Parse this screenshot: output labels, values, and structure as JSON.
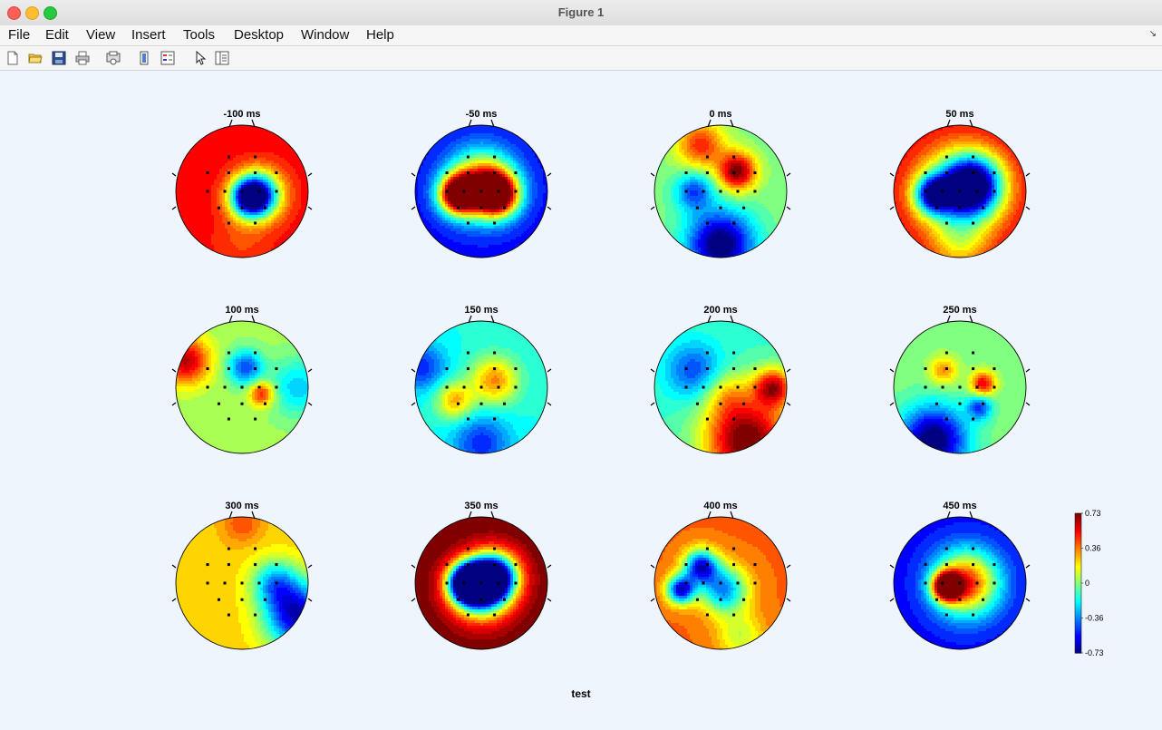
{
  "window": {
    "title": "Figure 1"
  },
  "menu": [
    "File",
    "Edit",
    "View",
    "Insert",
    "Tools",
    "Desktop",
    "Window",
    "Help"
  ],
  "toolbar": [
    {
      "name": "new-figure-icon"
    },
    {
      "name": "open-file-icon"
    },
    {
      "name": "save-icon"
    },
    {
      "name": "print-icon"
    },
    {
      "name": "print-preview-icon"
    },
    {
      "name": "colorbar-toggle-icon"
    },
    {
      "name": "legend-toggle-icon"
    },
    {
      "name": "pointer-icon"
    },
    {
      "name": "property-inspector-icon"
    }
  ],
  "figure": {
    "title": "test",
    "colorbar": {
      "ticks": [
        "0.73",
        "0.36",
        "0",
        "-0.36",
        "-0.73"
      ],
      "min": -0.73,
      "max": 0.73
    }
  },
  "chart_data": {
    "type": "heatmap",
    "title": "test",
    "panels": [
      {
        "label": "-100 ms",
        "base": 0.55,
        "blobs": [
          [
            0.25,
            0.05,
            -0.45,
            0.25
          ],
          [
            0.1,
            0.1,
            -0.3,
            0.2
          ],
          [
            0.0,
            0.75,
            0.45,
            0.3
          ]
        ]
      },
      {
        "label": "-50 ms",
        "base": -0.55,
        "blobs": [
          [
            -0.35,
            0.05,
            0.75,
            0.2
          ],
          [
            0.25,
            0.05,
            0.65,
            0.22
          ],
          [
            0.0,
            -0.1,
            0.55,
            0.35
          ]
        ]
      },
      {
        "label": "0 ms",
        "base": 0.0,
        "blobs": [
          [
            0.25,
            -0.3,
            0.75,
            0.2
          ],
          [
            -0.3,
            -0.7,
            0.5,
            0.25
          ],
          [
            0.0,
            0.8,
            -0.8,
            0.35
          ],
          [
            -0.4,
            0.0,
            -0.45,
            0.2
          ]
        ]
      },
      {
        "label": "50 ms",
        "base": 0.6,
        "blobs": [
          [
            0.2,
            -0.1,
            -0.45,
            0.3
          ],
          [
            -0.4,
            0.05,
            -0.35,
            0.2
          ],
          [
            0.0,
            0.0,
            -0.2,
            0.45
          ],
          [
            0.0,
            0.8,
            0.3,
            0.3
          ]
        ]
      },
      {
        "label": "100 ms",
        "base": 0.05,
        "blobs": [
          [
            0.05,
            -0.3,
            -0.45,
            0.18
          ],
          [
            0.3,
            0.1,
            0.55,
            0.13
          ],
          [
            -0.85,
            -0.4,
            0.65,
            0.25
          ],
          [
            0.85,
            0.0,
            -0.25,
            0.3
          ]
        ]
      },
      {
        "label": "150 ms",
        "base": -0.15,
        "blobs": [
          [
            0.2,
            -0.1,
            0.35,
            0.25
          ],
          [
            -0.4,
            0.2,
            0.3,
            0.2
          ],
          [
            0.0,
            0.85,
            -0.5,
            0.3
          ],
          [
            -0.9,
            -0.3,
            -0.5,
            0.25
          ]
        ]
      },
      {
        "label": "200 ms",
        "base": -0.1,
        "blobs": [
          [
            0.4,
            0.8,
            0.8,
            0.45
          ],
          [
            -0.4,
            -0.25,
            -0.45,
            0.3
          ],
          [
            0.1,
            0.1,
            0.15,
            0.25
          ],
          [
            0.8,
            0.0,
            0.6,
            0.2
          ]
        ]
      },
      {
        "label": "250 ms",
        "base": 0.0,
        "blobs": [
          [
            0.35,
            -0.05,
            0.6,
            0.13
          ],
          [
            -0.25,
            -0.25,
            0.35,
            0.15
          ],
          [
            0.3,
            0.3,
            -0.45,
            0.13
          ],
          [
            -0.4,
            0.8,
            -0.8,
            0.35
          ]
        ]
      },
      {
        "label": "300 ms",
        "base": 0.25,
        "blobs": [
          [
            0.85,
            0.5,
            -0.65,
            0.35
          ],
          [
            0.5,
            0.0,
            -0.25,
            0.25
          ],
          [
            0.0,
            -0.9,
            0.45,
            0.2
          ]
        ]
      },
      {
        "label": "350 ms",
        "base": 0.75,
        "blobs": [
          [
            -0.2,
            0.0,
            -0.85,
            0.2
          ],
          [
            0.2,
            -0.1,
            -0.6,
            0.25
          ],
          [
            0.0,
            0.1,
            -0.5,
            0.3
          ]
        ]
      },
      {
        "label": "400 ms",
        "base": 0.4,
        "blobs": [
          [
            -0.3,
            -0.25,
            -0.55,
            0.18
          ],
          [
            -0.6,
            0.1,
            -0.6,
            0.15
          ],
          [
            0.05,
            0.1,
            -0.35,
            0.25
          ],
          [
            0.3,
            0.8,
            0.1,
            0.25
          ]
        ]
      },
      {
        "label": "450 ms",
        "base": -0.55,
        "blobs": [
          [
            -0.2,
            0.05,
            0.75,
            0.15
          ],
          [
            0.1,
            0.0,
            0.5,
            0.35
          ]
        ]
      }
    ]
  }
}
